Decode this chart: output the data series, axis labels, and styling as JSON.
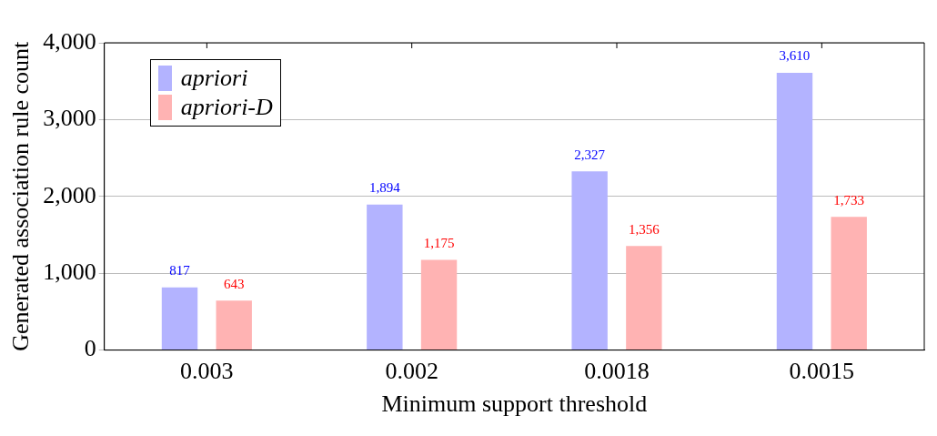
{
  "chart_data": {
    "type": "bar",
    "xlabel": "Minimum support threshold",
    "ylabel": "Generated association rule count",
    "categories": [
      "0.003",
      "0.002",
      "0.0018",
      "0.0015"
    ],
    "series": [
      {
        "name": "apriori",
        "color": "#b3b3ff",
        "values": [
          817,
          1894,
          2327,
          3610
        ],
        "value_labels": [
          "817",
          "1,894",
          "2,327",
          "3,610"
        ]
      },
      {
        "name": "apriori-D",
        "color": "#ffb3b3",
        "values": [
          643,
          1175,
          1356,
          1733
        ],
        "value_labels": [
          "643",
          "1,175",
          "1,356",
          "1,733"
        ]
      }
    ],
    "ylim": [
      0,
      4000
    ],
    "yticks": [
      0,
      {
        "value": 1000,
        "label": "1,000"
      },
      {
        "value": 2000,
        "label": "2,000"
      },
      {
        "value": 3000,
        "label": "3,000"
      },
      {
        "value": 4000,
        "label": "4,000"
      }
    ],
    "grid": "y",
    "legend": "top left"
  }
}
